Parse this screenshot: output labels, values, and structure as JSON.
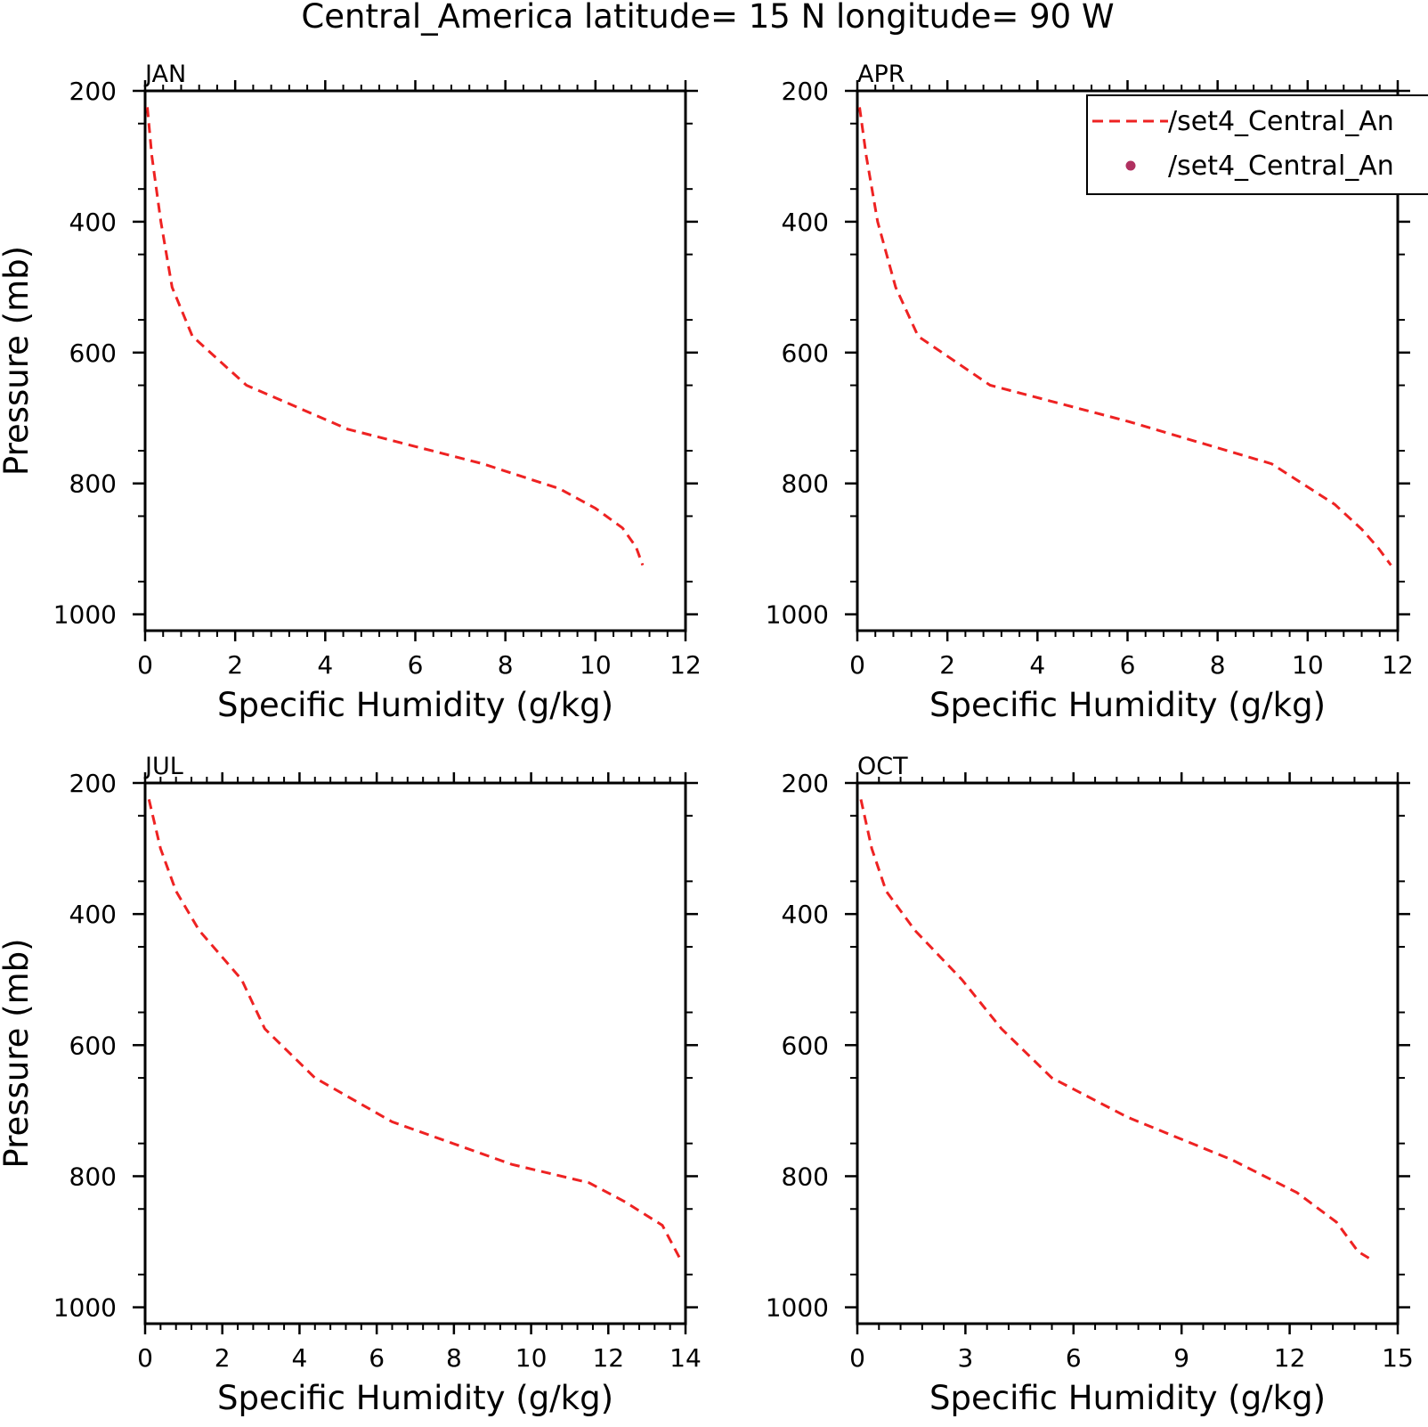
{
  "figure": {
    "title": "Central_America  latitude= 15 N longitude= 90 W"
  },
  "legend": {
    "entries": [
      {
        "label": "/set4_Central_An",
        "marker": "dashed-line",
        "color": "#ee2222"
      },
      {
        "label": "/set4_Central_An",
        "marker": "dot",
        "color": "#b03060"
      }
    ],
    "placement": "top-right of APR panel (clipped at figure edge)"
  },
  "chart_data": [
    {
      "type": "line",
      "panel": "JAN",
      "title": "JAN",
      "xlabel": "Specific Humidity (g/kg)",
      "ylabel": "Pressure (mb)",
      "xlim": [
        0,
        12
      ],
      "ylim": [
        200,
        1025
      ],
      "y_inverted": true,
      "xticks": [
        0,
        2,
        4,
        6,
        8,
        10,
        12
      ],
      "yticks": [
        200,
        400,
        600,
        800,
        1000
      ],
      "grid": false,
      "series": [
        {
          "name": "/set4_Central_An",
          "style": "dashed",
          "color": "#ee2222",
          "x": [
            0.05,
            0.15,
            0.35,
            0.6,
            1.05,
            2.25,
            4.5,
            7.5,
            9.2,
            10.0,
            10.6,
            10.9,
            11.05
          ],
          "y": [
            225,
            300,
            400,
            500,
            575,
            650,
            717,
            770,
            808,
            838,
            868,
            897,
            925
          ]
        }
      ]
    },
    {
      "type": "line",
      "panel": "APR",
      "title": "APR",
      "xlabel": "Specific Humidity (g/kg)",
      "ylabel": "",
      "xlim": [
        0,
        12
      ],
      "ylim": [
        200,
        1025
      ],
      "y_inverted": true,
      "xticks": [
        0,
        2,
        4,
        6,
        8,
        10,
        12
      ],
      "yticks": [
        200,
        400,
        600,
        800,
        1000
      ],
      "grid": false,
      "series": [
        {
          "name": "/set4_Central_An",
          "style": "dashed",
          "color": "#ee2222",
          "x": [
            0.05,
            0.2,
            0.45,
            0.85,
            1.35,
            2.95,
            6.0,
            9.2,
            10.6,
            11.2,
            11.55,
            11.85
          ],
          "y": [
            225,
            300,
            400,
            500,
            575,
            650,
            705,
            770,
            832,
            870,
            897,
            925
          ]
        }
      ]
    },
    {
      "type": "line",
      "panel": "JUL",
      "title": "JUL",
      "xlabel": "Specific Humidity (g/kg)",
      "ylabel": "Pressure (mb)",
      "xlim": [
        0,
        14
      ],
      "ylim": [
        200,
        1025
      ],
      "y_inverted": true,
      "xticks": [
        0,
        2,
        4,
        6,
        8,
        10,
        12,
        14
      ],
      "yticks": [
        200,
        400,
        600,
        800,
        1000
      ],
      "grid": false,
      "series": [
        {
          "name": "/set4_Central_An",
          "style": "dashed",
          "color": "#ee2222",
          "x": [
            0.1,
            0.4,
            0.8,
            1.4,
            2.5,
            3.1,
            4.4,
            6.4,
            9.5,
            11.5,
            12.4,
            13.4,
            13.85
          ],
          "y": [
            225,
            300,
            365,
            425,
            500,
            575,
            650,
            717,
            782,
            810,
            838,
            875,
            925
          ]
        }
      ]
    },
    {
      "type": "line",
      "panel": "OCT",
      "title": "OCT",
      "xlabel": "Specific Humidity (g/kg)",
      "ylabel": "",
      "xlim": [
        0,
        15
      ],
      "ylim": [
        200,
        1025
      ],
      "y_inverted": true,
      "xticks": [
        0,
        3,
        6,
        9,
        12,
        15
      ],
      "yticks": [
        200,
        400,
        600,
        800,
        1000
      ],
      "grid": false,
      "series": [
        {
          "name": "/set4_Central_An",
          "style": "dashed",
          "color": "#ee2222",
          "x": [
            0.1,
            0.4,
            0.8,
            1.6,
            2.9,
            4.0,
            5.4,
            7.5,
            10.4,
            12.2,
            13.3,
            13.9,
            14.2
          ],
          "y": [
            225,
            300,
            365,
            425,
            500,
            575,
            650,
            710,
            775,
            825,
            870,
            915,
            925
          ]
        }
      ]
    }
  ]
}
